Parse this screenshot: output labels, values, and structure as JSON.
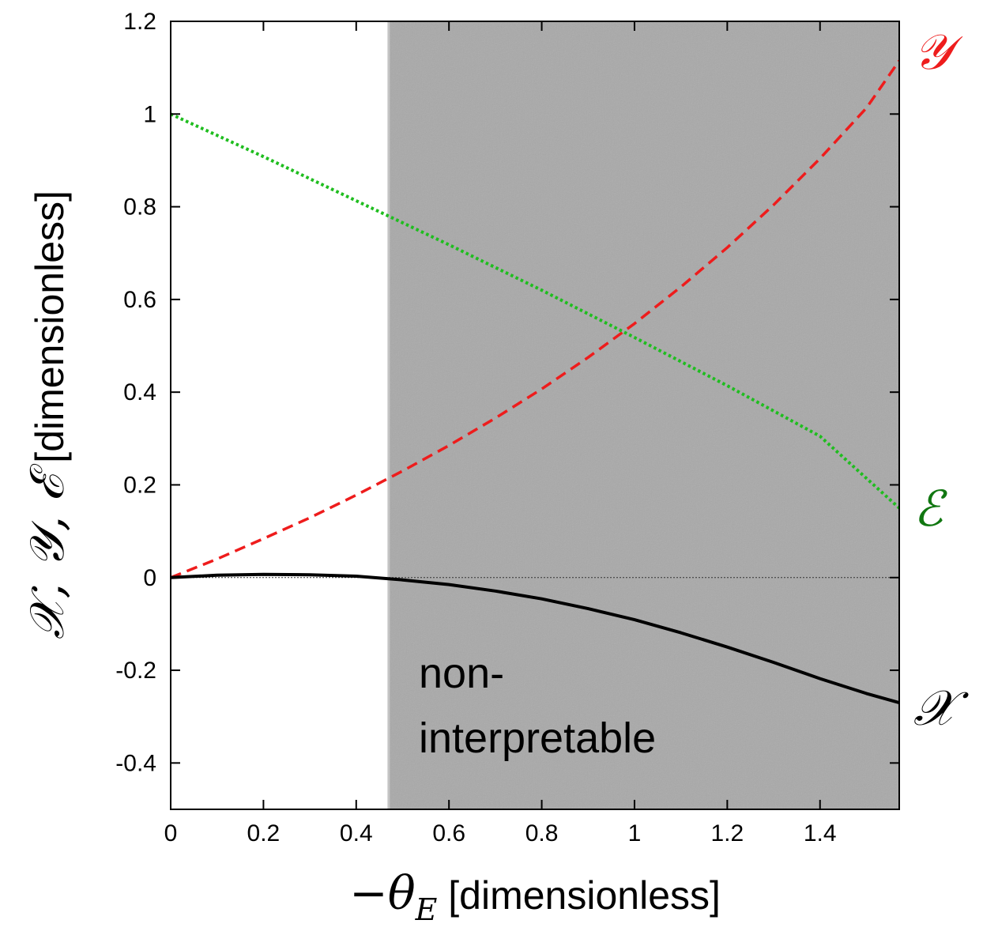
{
  "chart_data": {
    "type": "line",
    "title": "",
    "xlabel": {
      "prefix": "−θ",
      "subscript": "E",
      "suffix": " [dimensionless]"
    },
    "ylabel": {
      "symbols": "𝒳, 𝒴, ℰ",
      "suffix": " [dimensionless]"
    },
    "xlim": [
      0,
      1.5708
    ],
    "ylim": [
      -0.5,
      1.2
    ],
    "xticks": [
      0,
      0.2,
      0.4,
      0.6,
      0.8,
      1,
      1.2,
      1.4
    ],
    "xtick_labels": [
      "0",
      "0.2",
      "0.4",
      "0.6",
      "0.8",
      "1",
      "1.2",
      "1.4"
    ],
    "yticks": [
      -0.4,
      -0.2,
      0,
      0.2,
      0.4,
      0.6,
      0.8,
      1,
      1.2
    ],
    "ytick_labels": [
      "-0.4",
      "-0.2",
      "0",
      "0.2",
      "0.4",
      "0.6",
      "0.8",
      "1",
      "1.2"
    ],
    "shaded_region": {
      "x_start": 0.47,
      "x_end": 1.5708,
      "label_line1": "non-",
      "label_line2": "interpretable",
      "color": "#a9a9a9"
    },
    "zero_line": true,
    "series": [
      {
        "name": "𝒴",
        "style": "dashed",
        "color": "#ee1c1c",
        "x": [
          0,
          0.1,
          0.2,
          0.3,
          0.4,
          0.5,
          0.6,
          0.7,
          0.8,
          0.9,
          1.0,
          1.1,
          1.2,
          1.3,
          1.4,
          1.5,
          1.5708
        ],
        "values": [
          0,
          0.04,
          0.084,
          0.129,
          0.178,
          0.23,
          0.285,
          0.344,
          0.407,
          0.475,
          0.548,
          0.627,
          0.712,
          0.804,
          0.904,
          1.013,
          1.115
        ]
      },
      {
        "name": "ℰ",
        "style": "dotted",
        "color": "#1fbd1f",
        "label_color": "#117711",
        "x": [
          0,
          0.2,
          0.4,
          0.6,
          0.8,
          1.0,
          1.2,
          1.4,
          1.5708
        ],
        "values": [
          1.0,
          0.908,
          0.813,
          0.718,
          0.62,
          0.518,
          0.414,
          0.305,
          0.15
        ]
      },
      {
        "name": "𝒳",
        "style": "solid",
        "color": "#000000",
        "x": [
          0,
          0.1,
          0.2,
          0.3,
          0.4,
          0.5,
          0.6,
          0.7,
          0.8,
          0.9,
          1.0,
          1.1,
          1.2,
          1.3,
          1.4,
          1.5,
          1.5708
        ],
        "values": [
          0,
          0.005,
          0.007,
          0.006,
          0.003,
          -0.005,
          -0.015,
          -0.029,
          -0.046,
          -0.067,
          -0.091,
          -0.119,
          -0.15,
          -0.183,
          -0.218,
          -0.25,
          -0.27
        ]
      }
    ]
  }
}
